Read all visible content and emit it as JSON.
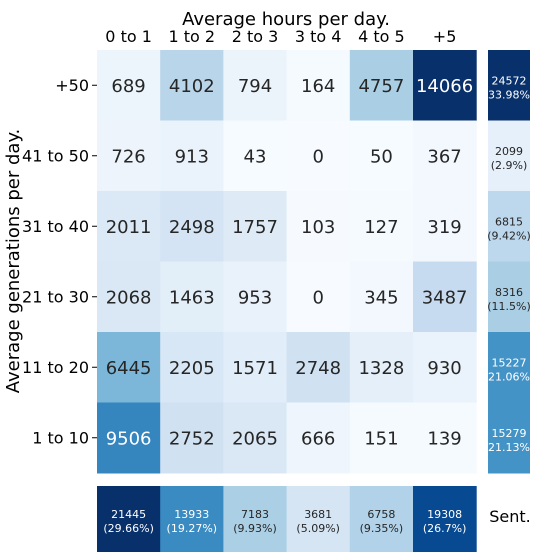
{
  "chart_data": {
    "type": "heatmap",
    "xlabel": "Average hours per day.",
    "ylabel": "Average generations per day.",
    "x_categories": [
      "0 to 1",
      "1 to 2",
      "2 to 3",
      "3 to 4",
      "4 to 5",
      "+5"
    ],
    "y_categories": [
      "+50",
      "41 to 50",
      "31 to 40",
      "21 to 30",
      "11 to 20",
      "1 to 10"
    ],
    "values": [
      [
        689,
        4102,
        794,
        164,
        4757,
        14066
      ],
      [
        726,
        913,
        43,
        0,
        50,
        367
      ],
      [
        2011,
        2498,
        1757,
        103,
        127,
        319
      ],
      [
        2068,
        1463,
        953,
        0,
        345,
        3487
      ],
      [
        6445,
        2205,
        1571,
        2748,
        1328,
        930
      ],
      [
        9506,
        2752,
        2065,
        666,
        151,
        139
      ]
    ],
    "row_totals": [
      {
        "value": 24572,
        "percent": "(33.98%)"
      },
      {
        "value": 2099,
        "percent": "(2.9%)"
      },
      {
        "value": 6815,
        "percent": "(9.42%)"
      },
      {
        "value": 8316,
        "percent": "(11.5%)"
      },
      {
        "value": 15227,
        "percent": "(21.06%)"
      },
      {
        "value": 15279,
        "percent": "(21.13%)"
      }
    ],
    "column_totals": [
      {
        "value": 21445,
        "percent": "(29.66%)"
      },
      {
        "value": 13933,
        "percent": "(19.27%)"
      },
      {
        "value": 7183,
        "percent": "(9.93%)"
      },
      {
        "value": 3681,
        "percent": "(5.09%)"
      },
      {
        "value": 6758,
        "percent": "(9.35%)"
      },
      {
        "value": 19308,
        "percent": "(26.7%)"
      }
    ],
    "corner_label": "Sent.",
    "colormap": "Blues",
    "colors": {
      "low": "#f7fbff",
      "mid_low": "#c6dbef",
      "mid": "#6baed6",
      "mid_high": "#2171b5",
      "high": "#08306b"
    }
  }
}
